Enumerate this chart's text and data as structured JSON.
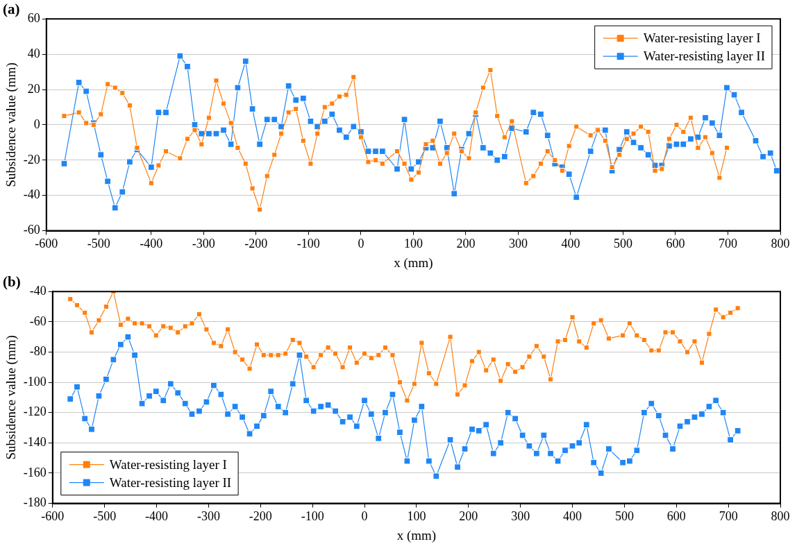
{
  "chart_data": [
    {
      "type": "line",
      "title": "(a)",
      "xlabel": "x (mm)",
      "ylabel": "Subsidence value (mm)",
      "xlim": [
        -600,
        800
      ],
      "xticks": [
        -600,
        -500,
        -400,
        -300,
        -200,
        -100,
        0,
        100,
        200,
        300,
        400,
        500,
        600,
        700,
        800
      ],
      "ylim": [
        -60,
        60
      ],
      "yticks": [
        -60,
        -40,
        -20,
        0,
        20,
        40,
        60
      ],
      "grid": "y",
      "legend": "top right",
      "marker": "square",
      "line_style": "solid",
      "series": [
        {
          "name": "Water-resisting layer I",
          "color": "#ff7f0e",
          "x": [
            -566,
            -538,
            -524,
            -510,
            -496,
            -483,
            -469,
            -455,
            -441,
            -427,
            -400,
            -386,
            -372,
            -345,
            -331,
            -317,
            -304,
            -290,
            -276,
            -262,
            -248,
            -235,
            -220,
            -207,
            -193,
            -179,
            -165,
            -152,
            -138,
            -124,
            -110,
            -96,
            -83,
            -69,
            -55,
            -41,
            -28,
            -14,
            0,
            14,
            28,
            41,
            69,
            83,
            96,
            110,
            124,
            137,
            151,
            164,
            178,
            192,
            206,
            219,
            233,
            247,
            260,
            274,
            288,
            315,
            329,
            343,
            356,
            370,
            384,
            397,
            411,
            438,
            452,
            466,
            479,
            493,
            507,
            520,
            534,
            548,
            561,
            574,
            588,
            602,
            615,
            629,
            643,
            657,
            670,
            684,
            698
          ],
          "values": [
            5,
            7,
            1,
            0,
            6,
            23,
            21,
            18,
            11,
            -13,
            -33,
            -23,
            -15,
            -19,
            -8,
            -3,
            -11,
            4,
            25,
            12,
            1,
            -13,
            -22,
            -36,
            -48,
            -29,
            -17,
            -5,
            7,
            9,
            -9,
            -22,
            -5,
            10,
            12,
            16,
            17,
            27,
            -7,
            -21,
            -20,
            -22,
            -15,
            -22,
            -31,
            -27,
            -11,
            -9,
            -22,
            -16,
            -5,
            -15,
            -19,
            7,
            21,
            31,
            5,
            -7,
            2,
            -33,
            -29,
            -22,
            -15,
            -20,
            -26,
            -12,
            -1,
            -6,
            -3,
            -9,
            -24,
            -17,
            -8,
            -5,
            -1,
            -4,
            -26,
            -25,
            -8,
            0,
            -4,
            4,
            -13,
            -7,
            -16,
            -30,
            -13
          ]
        },
        {
          "name": "Water-resisting layer II",
          "color": "#1f86f5",
          "x": [
            -566,
            -538,
            -524,
            -510,
            -496,
            -483,
            -469,
            -455,
            -441,
            -427,
            -400,
            -386,
            -372,
            -345,
            -331,
            -317,
            -304,
            -290,
            -276,
            -262,
            -248,
            -235,
            -220,
            -207,
            -193,
            -179,
            -165,
            -152,
            -138,
            -124,
            -110,
            -96,
            -83,
            -69,
            -55,
            -41,
            -28,
            -14,
            0,
            14,
            28,
            41,
            69,
            83,
            96,
            110,
            124,
            137,
            151,
            164,
            178,
            192,
            206,
            219,
            233,
            247,
            260,
            274,
            288,
            315,
            329,
            343,
            356,
            370,
            384,
            397,
            411,
            438,
            452,
            466,
            479,
            493,
            507,
            520,
            534,
            548,
            561,
            574,
            588,
            602,
            615,
            629,
            643,
            657,
            670,
            684,
            698,
            712,
            726,
            753,
            767,
            781,
            793
          ],
          "values": [
            -22,
            24,
            19,
            1,
            -17,
            -32,
            -47,
            -38,
            -21,
            -14,
            -24,
            7,
            7,
            39,
            33,
            0,
            -5,
            -5,
            -5,
            -3,
            -11,
            21,
            36,
            9,
            -11,
            3,
            3,
            -1,
            22,
            14,
            15,
            2,
            -1,
            2,
            6,
            -3,
            -7,
            -1,
            -4,
            -15,
            -15,
            -15,
            -25,
            3,
            -25,
            -21,
            -13,
            -13,
            2,
            -13,
            -39,
            -14,
            -5,
            6,
            -13,
            -16,
            -20,
            -18,
            -2,
            -4,
            7,
            6,
            -6,
            -22,
            -24,
            -28,
            -41,
            -15,
            -3,
            -3,
            -26,
            -14,
            -4,
            -10,
            -13,
            -17,
            -23,
            -23,
            -12,
            -11,
            -11,
            -8,
            -7,
            4,
            1,
            -6,
            21,
            17,
            7,
            -9,
            -18,
            -16,
            -26
          ]
        }
      ]
    },
    {
      "type": "line",
      "title": "(b)",
      "xlabel": "x (mm)",
      "ylabel": "Subsidence value (mm)",
      "xlim": [
        -600,
        800
      ],
      "xticks": [
        -600,
        -500,
        -400,
        -300,
        -200,
        -100,
        0,
        100,
        200,
        300,
        400,
        500,
        600,
        700,
        800
      ],
      "ylim": [
        -180,
        -40
      ],
      "yticks": [
        -180,
        -160,
        -140,
        -120,
        -100,
        -80,
        -60,
        -40
      ],
      "grid": "y",
      "legend": "bottom left",
      "marker": "square",
      "line_style": "solid",
      "series": [
        {
          "name": "Water-resisting layer I",
          "color": "#ff7f0e",
          "x": [
            -566,
            -553,
            -538,
            -525,
            -511,
            -497,
            -483,
            -469,
            -455,
            -442,
            -428,
            -414,
            -401,
            -387,
            -373,
            -359,
            -345,
            -332,
            -318,
            -304,
            -290,
            -276,
            -263,
            -249,
            -235,
            -221,
            -207,
            -194,
            -180,
            -166,
            -152,
            -138,
            -125,
            -112,
            -98,
            -84,
            -70,
            -56,
            -42,
            -28,
            -15,
            0,
            13,
            27,
            40,
            54,
            68,
            82,
            96,
            110,
            124,
            138,
            165,
            179,
            193,
            207,
            220,
            234,
            248,
            262,
            276,
            290,
            304,
            317,
            331,
            345,
            358,
            372,
            386,
            400,
            413,
            427,
            441,
            455,
            470,
            497,
            510,
            524,
            538,
            552,
            566,
            579,
            593,
            607,
            621,
            635,
            649,
            663,
            676,
            690,
            704,
            718
          ],
          "values": [
            -45,
            -49,
            -54,
            -67,
            -59,
            -50,
            -40,
            -62,
            -58,
            -61,
            -61,
            -63,
            -69,
            -63,
            -64,
            -67,
            -63,
            -61,
            -55,
            -65,
            -74,
            -76,
            -65,
            -80,
            -85,
            -91,
            -75,
            -82,
            -82,
            -82,
            -81,
            -72,
            -74,
            -83,
            -90,
            -82,
            -77,
            -81,
            -90,
            -77,
            -87,
            -81,
            -84,
            -82,
            -77,
            -82,
            -100,
            -112,
            -101,
            -74,
            -94,
            -101,
            -70,
            -108,
            -102,
            -86,
            -80,
            -92,
            -85,
            -99,
            -88,
            -93,
            -90,
            -83,
            -76,
            -83,
            -98,
            -73,
            -72,
            -57,
            -73,
            -77,
            -61,
            -59,
            -71,
            -69,
            -61,
            -69,
            -72,
            -79,
            -79,
            -67,
            -67,
            -73,
            -80,
            -73,
            -87,
            -68,
            -52,
            -57,
            -54,
            -51
          ]
        },
        {
          "name": "Water-resisting layer II",
          "color": "#1f86f5",
          "x": [
            -566,
            -553,
            -538,
            -525,
            -511,
            -497,
            -483,
            -469,
            -455,
            -442,
            -428,
            -414,
            -401,
            -387,
            -373,
            -359,
            -345,
            -332,
            -318,
            -304,
            -290,
            -276,
            -263,
            -249,
            -235,
            -221,
            -207,
            -194,
            -180,
            -166,
            -152,
            -138,
            -125,
            -112,
            -98,
            -84,
            -70,
            -56,
            -42,
            -28,
            -15,
            0,
            13,
            27,
            40,
            54,
            68,
            82,
            96,
            110,
            124,
            138,
            165,
            179,
            193,
            207,
            220,
            234,
            248,
            262,
            276,
            290,
            304,
            317,
            331,
            345,
            358,
            372,
            386,
            400,
            413,
            427,
            441,
            455,
            470,
            497,
            510,
            524,
            538,
            552,
            566,
            579,
            593,
            607,
            621,
            635,
            649,
            663,
            676,
            690,
            704,
            718
          ],
          "values": [
            -111,
            -103,
            -124,
            -131,
            -109,
            -98,
            -85,
            -75,
            -70,
            -82,
            -114,
            -109,
            -106,
            -112,
            -101,
            -107,
            -114,
            -121,
            -119,
            -113,
            -102,
            -108,
            -121,
            -116,
            -123,
            -134,
            -129,
            -122,
            -106,
            -116,
            -120,
            -101,
            -82,
            -112,
            -119,
            -116,
            -115,
            -119,
            -126,
            -123,
            -129,
            -112,
            -121,
            -137,
            -120,
            -108,
            -133,
            -152,
            -125,
            -116,
            -152,
            -162,
            -138,
            -156,
            -144,
            -131,
            -132,
            -128,
            -147,
            -140,
            -120,
            -124,
            -135,
            -142,
            -147,
            -135,
            -147,
            -152,
            -145,
            -142,
            -140,
            -128,
            -153,
            -160,
            -144,
            -153,
            -152,
            -145,
            -120,
            -114,
            -122,
            -135,
            -144,
            -129,
            -126,
            -123,
            -121,
            -116,
            -112,
            -120,
            -138,
            -132
          ]
        }
      ]
    }
  ]
}
